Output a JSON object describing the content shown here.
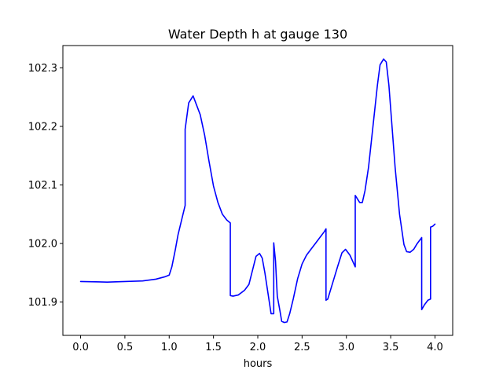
{
  "chart_data": {
    "type": "line",
    "title": "Water Depth h at gauge 130",
    "xlabel": "hours",
    "ylabel": "",
    "xlim": [
      -0.2,
      4.2
    ],
    "ylim": [
      101.843,
      102.338
    ],
    "grid": false,
    "x_ticks": [
      0.0,
      0.5,
      1.0,
      1.5,
      2.0,
      2.5,
      3.0,
      3.5,
      4.0
    ],
    "x_tick_labels": [
      "0.0",
      "0.5",
      "1.0",
      "1.5",
      "2.0",
      "2.5",
      "3.0",
      "3.5",
      "4.0"
    ],
    "y_ticks": [
      101.9,
      102.0,
      102.1,
      102.2,
      102.3
    ],
    "y_tick_labels": [
      "101.9",
      "102.0",
      "102.1",
      "102.2",
      "102.3"
    ],
    "series": [
      {
        "color": "#0000ff",
        "x": [
          0.0,
          0.3,
          0.5,
          0.7,
          0.85,
          0.95,
          1.0,
          1.03,
          1.07,
          1.1,
          1.14,
          1.18,
          1.18,
          1.22,
          1.27,
          1.3,
          1.35,
          1.4,
          1.45,
          1.5,
          1.55,
          1.6,
          1.65,
          1.69,
          1.69,
          1.72,
          1.78,
          1.85,
          1.9,
          1.95,
          1.98,
          2.02,
          2.05,
          2.08,
          2.12,
          2.15,
          2.18,
          2.18,
          2.2,
          2.22,
          2.25,
          2.27,
          2.3,
          2.33,
          2.36,
          2.4,
          2.45,
          2.5,
          2.55,
          2.6,
          2.65,
          2.7,
          2.75,
          2.77,
          2.77,
          2.79,
          2.85,
          2.9,
          2.95,
          2.99,
          3.04,
          3.1,
          3.1,
          3.15,
          3.18,
          3.21,
          3.25,
          3.3,
          3.35,
          3.38,
          3.42,
          3.45,
          3.48,
          3.51,
          3.55,
          3.6,
          3.65,
          3.68,
          3.72,
          3.76,
          3.8,
          3.85,
          3.85,
          3.88,
          3.92,
          3.95,
          3.95,
          3.97,
          3.98,
          4.0
        ],
        "y": [
          101.935,
          101.934,
          101.935,
          101.936,
          101.939,
          101.943,
          101.946,
          101.96,
          101.99,
          102.015,
          102.04,
          102.065,
          102.195,
          102.24,
          102.252,
          102.24,
          102.22,
          102.185,
          102.14,
          102.098,
          102.07,
          102.05,
          102.04,
          102.035,
          101.911,
          101.91,
          101.912,
          101.92,
          101.93,
          101.96,
          101.978,
          101.983,
          101.975,
          101.95,
          101.91,
          101.88,
          101.88,
          102.001,
          101.97,
          101.91,
          101.885,
          101.867,
          101.865,
          101.866,
          101.88,
          101.905,
          101.94,
          101.965,
          101.98,
          101.99,
          102.0,
          102.01,
          102.02,
          102.025,
          101.903,
          101.905,
          101.935,
          101.96,
          101.984,
          101.99,
          101.98,
          101.96,
          102.082,
          102.07,
          102.07,
          102.09,
          102.13,
          102.2,
          102.27,
          102.305,
          102.315,
          102.31,
          102.27,
          102.21,
          102.13,
          102.05,
          101.998,
          101.986,
          101.985,
          101.99,
          102.0,
          102.01,
          101.887,
          101.895,
          101.903,
          101.905,
          102.028,
          102.029,
          102.03,
          102.033
        ]
      }
    ]
  }
}
